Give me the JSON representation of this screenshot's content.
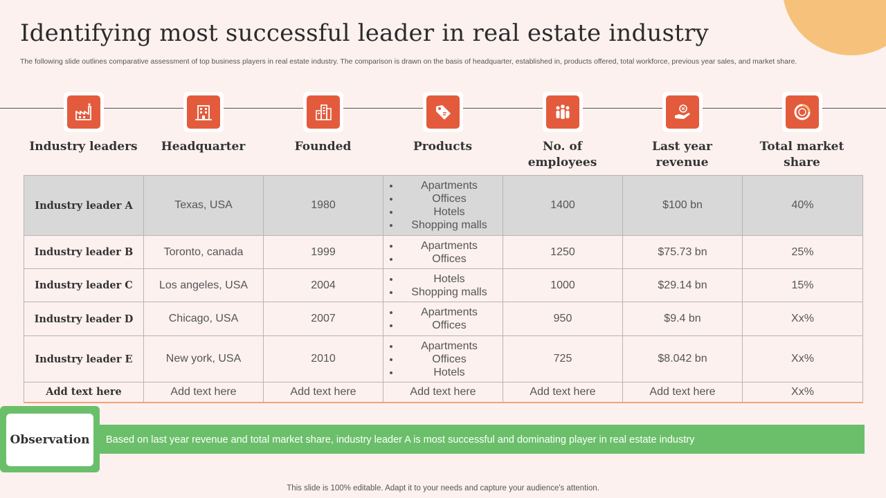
{
  "title": "Identifying most successful leader in real estate industry",
  "subtitle": "The following slide outlines comparative assessment of top business players in real estate industry. The comparison is drawn on the basis of headquarter, established in, products offered, total workforce, previous year sales, and market share.",
  "colors": {
    "accent": "#e35b3c",
    "green": "#6bbf6a",
    "background": "#fcf1ef",
    "decor": "#f6c27b"
  },
  "columns": [
    {
      "label": "Industry leaders",
      "icon": "factory-icon"
    },
    {
      "label": "Headquarter",
      "icon": "office-building-icon"
    },
    {
      "label": "Founded",
      "icon": "city-buildings-icon"
    },
    {
      "label": "Products",
      "icon": "price-tag-icon"
    },
    {
      "label": "No. of employees",
      "icon": "people-group-icon"
    },
    {
      "label": "Last year revenue",
      "icon": "hand-money-icon"
    },
    {
      "label": "Total market share",
      "icon": "donut-chart-icon"
    }
  ],
  "rows": [
    {
      "leader": "Industry leader A",
      "hq": "Texas, USA",
      "founded": "1980",
      "products": [
        "Apartments",
        "Offices",
        "Hotels",
        "Shopping malls"
      ],
      "employees": "1400",
      "revenue": "$100 bn",
      "share": "40%"
    },
    {
      "leader": "Industry leader B",
      "hq": "Toronto, canada",
      "founded": "1999",
      "products": [
        "Apartments",
        "Offices"
      ],
      "employees": "1250",
      "revenue": "$75.73 bn",
      "share": "25%"
    },
    {
      "leader": "Industry leader C",
      "hq": "Los angeles, USA",
      "founded": "2004",
      "products": [
        "Hotels",
        "Shopping malls"
      ],
      "employees": "1000",
      "revenue": "$29.14 bn",
      "share": "15%"
    },
    {
      "leader": "Industry leader D",
      "hq": "Chicago, USA",
      "founded": "2007",
      "products": [
        "Apartments",
        "Offices"
      ],
      "employees": "950",
      "revenue": "$9.4 bn",
      "share": "Xx%"
    },
    {
      "leader": "Industry leader E",
      "hq": "New york, USA",
      "founded": "2010",
      "products": [
        "Apartments",
        "Offices",
        "Hotels"
      ],
      "employees": "725",
      "revenue": "$8.042 bn",
      "share": "Xx%"
    },
    {
      "leader": "Add text here",
      "hq": "Add text here",
      "founded": "Add text here",
      "products_text": "Add text here",
      "employees": "Add text here",
      "revenue": "Add text here",
      "share": "Xx%"
    }
  ],
  "observation": {
    "label": "Observation",
    "text": "Based on last year revenue and total market share, industry leader A is most successful and dominating player in real estate industry"
  },
  "footer": "This slide is 100% editable. Adapt it to your needs and capture your audience's attention."
}
